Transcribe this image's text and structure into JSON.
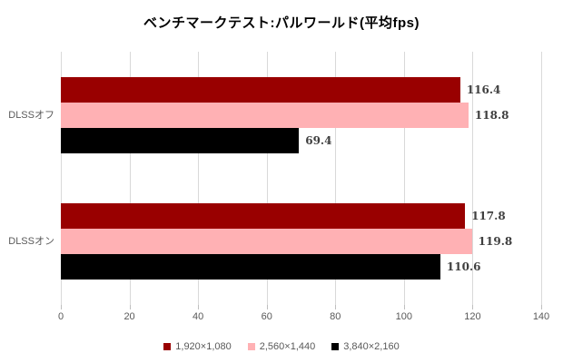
{
  "chart_data": {
    "type": "bar",
    "orientation": "horizontal",
    "title": "ベンチマークテスト:パルワールド(平均fps)",
    "categories": [
      "DLSSオフ",
      "DLSSオン"
    ],
    "series": [
      {
        "name": "1,920×1,080",
        "color": "#990000",
        "values": [
          116.4,
          117.8
        ]
      },
      {
        "name": "2,560×1,440",
        "color": "#ffb1b4",
        "values": [
          118.8,
          119.8
        ]
      },
      {
        "name": "3,840×2,160",
        "color": "#000000",
        "values": [
          69.4,
          110.6
        ]
      }
    ],
    "xlim": [
      0,
      140
    ],
    "x_ticks": [
      0,
      20,
      40,
      60,
      80,
      100,
      120,
      140
    ],
    "grid": true,
    "value_labels": true,
    "value_label_decimals": 1,
    "legend_position": "bottom",
    "colors": {
      "grid": "#d9d9d9",
      "tick": "#bfbfbf",
      "axis_text": "#595959",
      "value_text": "#3f3f3f",
      "title_text": "#000000",
      "background": "#ffffff"
    }
  }
}
